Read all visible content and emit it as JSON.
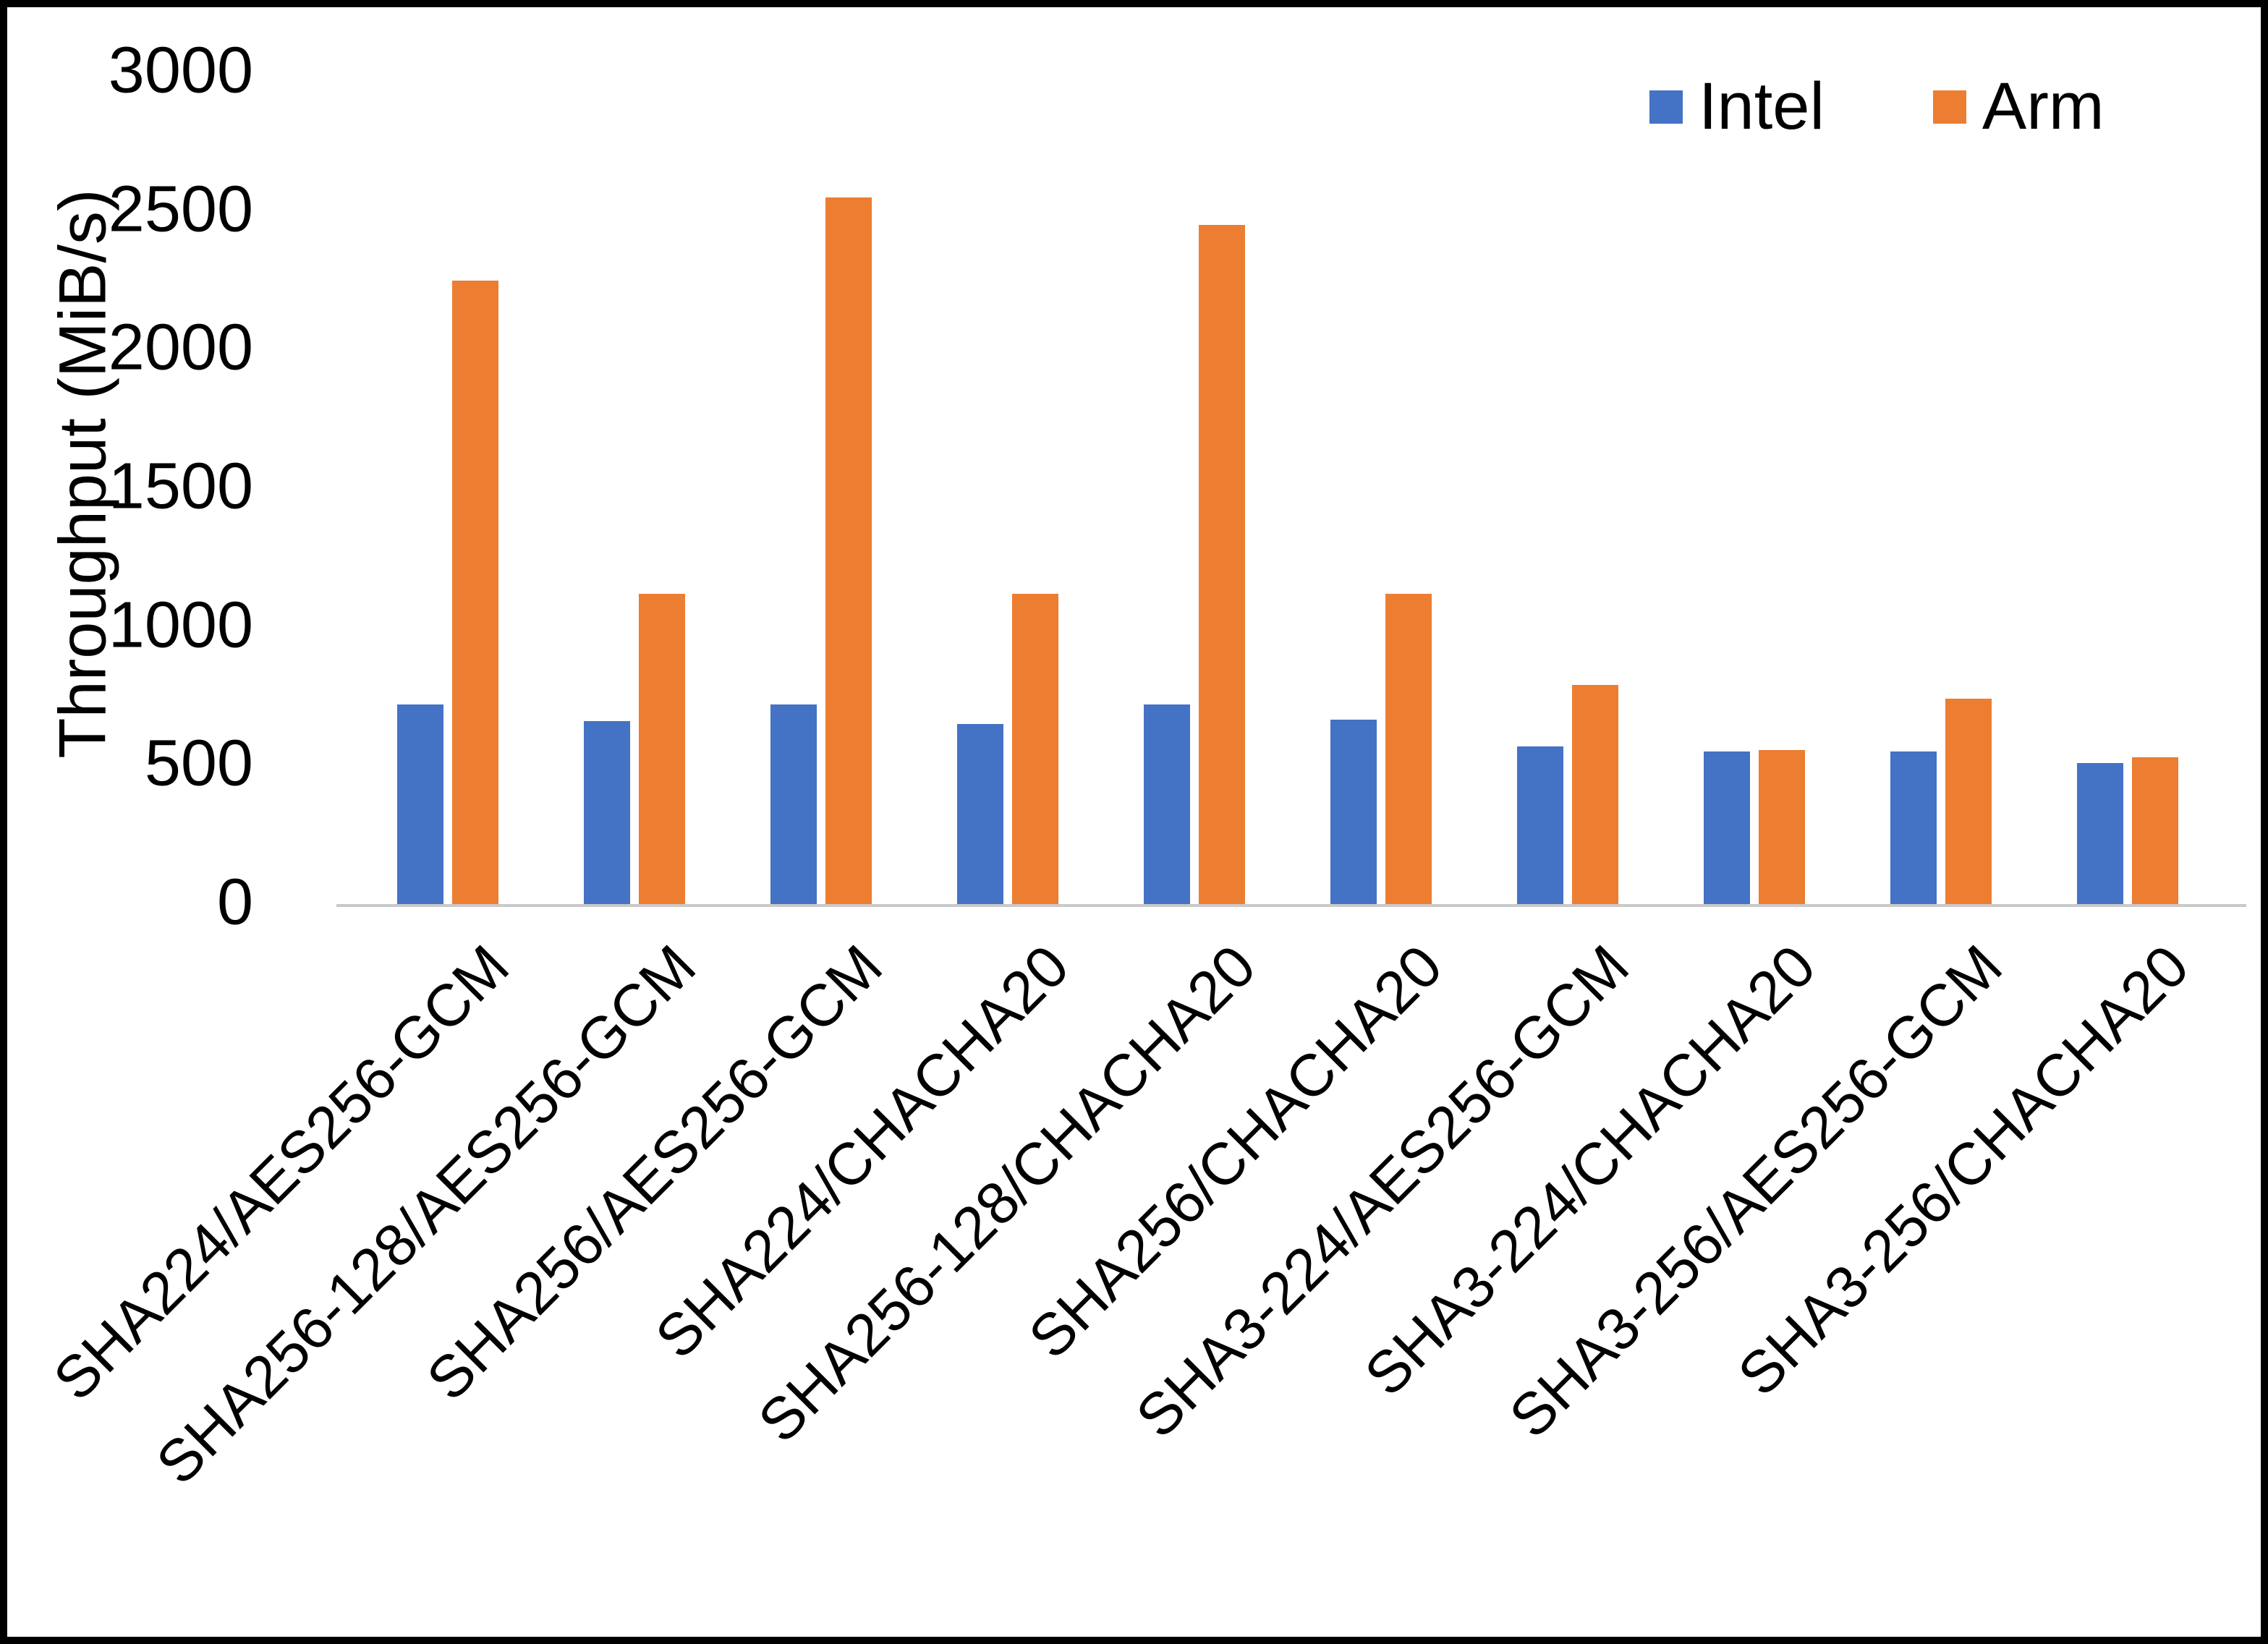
{
  "chart_data": {
    "type": "bar",
    "title": "",
    "xlabel": "",
    "ylabel": "Throughput (MiB/s)",
    "ylim": [
      0,
      3000
    ],
    "yticks": [
      0,
      500,
      1000,
      1500,
      2000,
      2500,
      3000
    ],
    "grid": false,
    "legend_position": "top-right",
    "categories": [
      "SHA224/AES256-GCM",
      "SHA256-128/AES256-GCM",
      "SHA256/AES256-GCM",
      "SHA224/CHACHA20",
      "SHA256-128/CHACHA20",
      "SHA256/CHACHA20",
      "SHA3-224/AES256-GCM",
      "SHA3-224/CHACHA20",
      "SHA3-256/AES256-GCM",
      "SHA3-256/CHACHA20"
    ],
    "series": [
      {
        "name": "Intel",
        "color": "#4472C4",
        "values": [
          720,
          660,
          720,
          650,
          720,
          665,
          570,
          550,
          550,
          510
        ]
      },
      {
        "name": "Arm",
        "color": "#ED7D31",
        "values": [
          2250,
          1120,
          2550,
          1120,
          2450,
          1120,
          790,
          555,
          740,
          530
        ]
      }
    ]
  }
}
